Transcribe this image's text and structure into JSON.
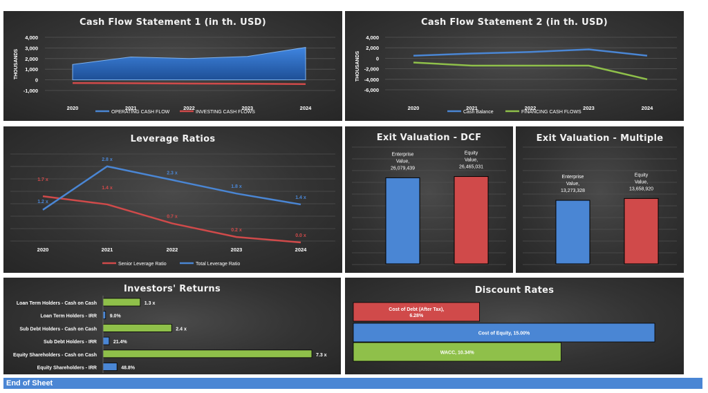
{
  "footer": "End of Sheet",
  "panels": {
    "cf1": "Cash Flow Statement 1 (in th. USD)",
    "cf2": "Cash Flow Statement 2 (in th. USD)",
    "lev": "Leverage Ratios",
    "dcf": "Exit Valuation - DCF",
    "mult": "Exit Valuation - Multiple",
    "inv": "Investors' Returns",
    "disc": "Discount Rates"
  },
  "chart_data": [
    {
      "id": "cf1",
      "type": "area",
      "title": "Cash Flow Statement 1 (in th. USD)",
      "ylabel": "THOUSANDS",
      "x": [
        "2020",
        "2021",
        "2022",
        "2023",
        "2024"
      ],
      "ylim": [
        -1000,
        4000
      ],
      "yticks": [
        "4,000",
        "3,000",
        "2,000",
        "1,000",
        "0",
        "-1,000"
      ],
      "series": [
        {
          "name": "OPERATING CASH FLOW",
          "values": [
            1450,
            2150,
            2000,
            2200,
            3050
          ],
          "color": "#4a86d4"
        },
        {
          "name": "INVESTING CASH FLOWS",
          "values": [
            -300,
            -320,
            -350,
            -370,
            -400
          ],
          "color": "#d04a4a"
        }
      ],
      "legend": "bottom"
    },
    {
      "id": "cf2",
      "type": "line",
      "title": "Cash Flow Statement 2 (in th. USD)",
      "ylabel": "THOUSANDS",
      "x": [
        "2020",
        "2021",
        "2022",
        "2023",
        "2024"
      ],
      "ylim": [
        -6000,
        4000
      ],
      "yticks": [
        "4,000",
        "2,000",
        "0",
        "-2,000",
        "-4,000",
        "-6,000"
      ],
      "series": [
        {
          "name": "Cash Balance",
          "values": [
            500,
            900,
            1200,
            1700,
            500
          ],
          "color": "#4a86d4"
        },
        {
          "name": "FINANCING CASH FLOWS",
          "values": [
            -800,
            -1400,
            -1400,
            -1400,
            -4000
          ],
          "color": "#8fc04a"
        }
      ],
      "legend": "bottom"
    },
    {
      "id": "lev",
      "type": "line",
      "title": "Leverage Ratios",
      "x": [
        "2020",
        "2021",
        "2022",
        "2023",
        "2024"
      ],
      "ylim": [
        0,
        3
      ],
      "series": [
        {
          "name": "Senior Leverage Ratio",
          "values": [
            1.7,
            1.4,
            0.7,
            0.2,
            0.0
          ],
          "labels": [
            "1.7 x",
            "1.4 x",
            "0.7 x",
            "0.2 x",
            "0.0 x"
          ],
          "color": "#d04a4a"
        },
        {
          "name": "Total Leverage Ratio",
          "values": [
            1.2,
            2.8,
            2.3,
            1.8,
            1.4
          ],
          "labels": [
            "1.2 x",
            "2.8 x",
            "2.3 x",
            "1.8 x",
            "1.4 x"
          ],
          "color": "#4a86d4"
        }
      ],
      "legend": "bottom"
    },
    {
      "id": "dcf",
      "type": "bar",
      "title": "Exit Valuation - DCF",
      "categories": [
        "Enterprise Value",
        "Equity Value"
      ],
      "values": [
        26079439,
        26465031
      ],
      "labels": [
        [
          "Enterprise",
          "Value,",
          "26,079,439"
        ],
        [
          "Equity",
          "Value,",
          "26,465,031"
        ]
      ],
      "colors": [
        "#4a86d4",
        "#d04a4a"
      ],
      "ylim": [
        0,
        27000000
      ]
    },
    {
      "id": "mult",
      "type": "bar",
      "title": "Exit Valuation - Multiple",
      "categories": [
        "Enterprise Value",
        "Equity Value"
      ],
      "values": [
        13273328,
        13658920
      ],
      "labels": [
        [
          "Enterprise",
          "Value,",
          "13,273,328"
        ],
        [
          "Equity",
          "Value,",
          "13,658,920"
        ]
      ],
      "colors": [
        "#4a86d4",
        "#d04a4a"
      ],
      "ylim": [
        0,
        14000000
      ]
    },
    {
      "id": "inv",
      "type": "bar",
      "title": "Investors' Returns",
      "orientation": "horizontal",
      "categories": [
        "Loan Term Holders - Cash on Cash",
        "Loan Term Holders - IRR",
        "Sub Debt Holders - Cash on Cash",
        "Sub Debt Holders - IRR",
        "Equity Shareholders - Cash on Cash",
        "Equity Shareholders - IRR"
      ],
      "values": [
        1.3,
        0.09,
        2.4,
        0.214,
        7.3,
        0.488
      ],
      "labels": [
        "1.3 x",
        "9.0%",
        "2.4 x",
        "21.4%",
        "7.3 x",
        "48.8%"
      ],
      "colors": [
        "#8fc04a",
        "#4a86d4",
        "#8fc04a",
        "#4a86d4",
        "#8fc04a",
        "#4a86d4"
      ],
      "xmax": 7.3
    },
    {
      "id": "disc",
      "type": "bar",
      "title": "Discount Rates",
      "orientation": "horizontal",
      "categories": [
        "Cost of Debt (After Tax)",
        "Cost of Equity",
        "WACC"
      ],
      "values": [
        6.28,
        15.0,
        10.34
      ],
      "labels": [
        [
          "Cost of Debt (After Tax),",
          "6.28%"
        ],
        [
          "Cost of Equity, 15.00%"
        ],
        [
          "WACC, 10.34%"
        ]
      ],
      "colors": [
        "#d04a4a",
        "#4a86d4",
        "#8fc04a"
      ],
      "xmax": 15.0
    }
  ]
}
